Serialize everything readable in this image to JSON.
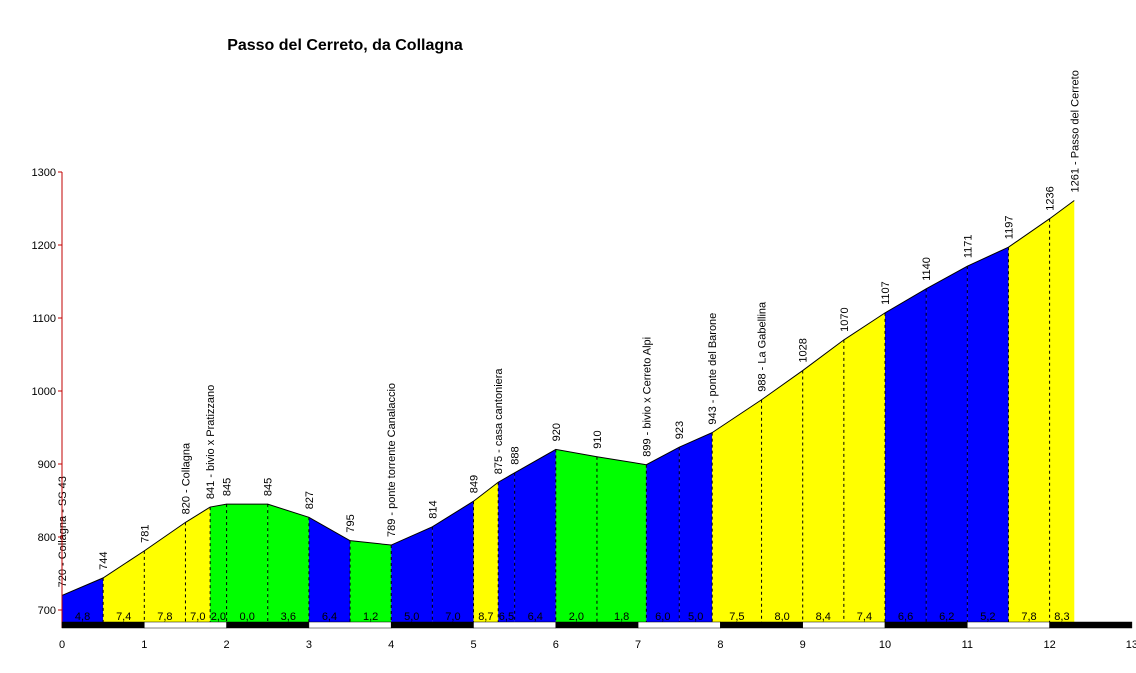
{
  "chart_data": {
    "type": "area",
    "title": "Passo del Cerreto, da Collagna",
    "xlabel": "",
    "ylabel": "",
    "xlim": [
      0,
      13
    ],
    "ylim": [
      700,
      1300
    ],
    "x_ticks": [
      "0",
      "1",
      "2",
      "3",
      "4",
      "5",
      "6",
      "7",
      "8",
      "9",
      "10",
      "11",
      "12",
      "13"
    ],
    "y_ticks": [
      "700",
      "800",
      "900",
      "1000",
      "1100",
      "1200",
      "1300"
    ],
    "colors": {
      "blue": "#0000ff",
      "yellow": "#ffff00",
      "green": "#00ff00",
      "line": "#000000"
    },
    "points": [
      {
        "x": 0.0,
        "alt": 720,
        "label": "720 - Collagna - SS 43"
      },
      {
        "x": 0.5,
        "alt": 744,
        "label": "744"
      },
      {
        "x": 1.0,
        "alt": 781,
        "label": "781"
      },
      {
        "x": 1.5,
        "alt": 820,
        "label": "820 - Collagna"
      },
      {
        "x": 1.8,
        "alt": 841,
        "label": "841 - bivio x Pratizzano"
      },
      {
        "x": 2.0,
        "alt": 845,
        "label": "845"
      },
      {
        "x": 2.5,
        "alt": 845,
        "label": "845"
      },
      {
        "x": 3.0,
        "alt": 827,
        "label": "827"
      },
      {
        "x": 3.5,
        "alt": 795,
        "label": "795"
      },
      {
        "x": 4.0,
        "alt": 789,
        "label": "789 - ponte torrente Canalaccio"
      },
      {
        "x": 4.5,
        "alt": 814,
        "label": "814"
      },
      {
        "x": 5.0,
        "alt": 849,
        "label": "849"
      },
      {
        "x": 5.3,
        "alt": 875,
        "label": "875 - casa cantoniera"
      },
      {
        "x": 5.5,
        "alt": 888,
        "label": "888"
      },
      {
        "x": 6.0,
        "alt": 920,
        "label": "920"
      },
      {
        "x": 6.5,
        "alt": 910,
        "label": "910"
      },
      {
        "x": 7.1,
        "alt": 899,
        "label": "899 - bivio x Cerreto Alpi"
      },
      {
        "x": 7.5,
        "alt": 923,
        "label": "923"
      },
      {
        "x": 7.9,
        "alt": 943,
        "label": "943 - ponte del Barone"
      },
      {
        "x": 8.5,
        "alt": 988,
        "label": "988 - La Gabellina"
      },
      {
        "x": 9.0,
        "alt": 1028,
        "label": "1028"
      },
      {
        "x": 9.5,
        "alt": 1070,
        "label": "1070"
      },
      {
        "x": 10.0,
        "alt": 1107,
        "label": "1107"
      },
      {
        "x": 10.5,
        "alt": 1140,
        "label": "1140"
      },
      {
        "x": 11.0,
        "alt": 1171,
        "label": "1171"
      },
      {
        "x": 11.5,
        "alt": 1197,
        "label": "1197"
      },
      {
        "x": 12.0,
        "alt": 1236,
        "label": "1236"
      },
      {
        "x": 12.3,
        "alt": 1261,
        "label": "1261 - Passo del Cerreto"
      }
    ],
    "segments": [
      {
        "grade": "4,8",
        "color": "blue"
      },
      {
        "grade": "7,4",
        "color": "yellow"
      },
      {
        "grade": "7,8",
        "color": "yellow"
      },
      {
        "grade": "7,0",
        "color": "yellow"
      },
      {
        "grade": "2,0",
        "color": "green"
      },
      {
        "grade": "0,0",
        "color": "green"
      },
      {
        "grade": "3,6",
        "color": "green"
      },
      {
        "grade": "6,4",
        "color": "blue"
      },
      {
        "grade": "1,2",
        "color": "green"
      },
      {
        "grade": "5,0",
        "color": "blue"
      },
      {
        "grade": "7,0",
        "color": "blue"
      },
      {
        "grade": "8,7",
        "color": "yellow"
      },
      {
        "grade": "6,5",
        "color": "blue"
      },
      {
        "grade": "6,4",
        "color": "blue"
      },
      {
        "grade": "2,0",
        "color": "green"
      },
      {
        "grade": "1,8",
        "color": "green"
      },
      {
        "grade": "6,0",
        "color": "blue"
      },
      {
        "grade": "5,0",
        "color": "blue"
      },
      {
        "grade": "7,5",
        "color": "yellow"
      },
      {
        "grade": "8,0",
        "color": "yellow"
      },
      {
        "grade": "8,4",
        "color": "yellow"
      },
      {
        "grade": "7,4",
        "color": "yellow"
      },
      {
        "grade": "6,6",
        "color": "blue"
      },
      {
        "grade": "6,2",
        "color": "blue"
      },
      {
        "grade": "5,2",
        "color": "blue"
      },
      {
        "grade": "7,8",
        "color": "yellow"
      },
      {
        "grade": "8,3",
        "color": "yellow"
      }
    ]
  }
}
